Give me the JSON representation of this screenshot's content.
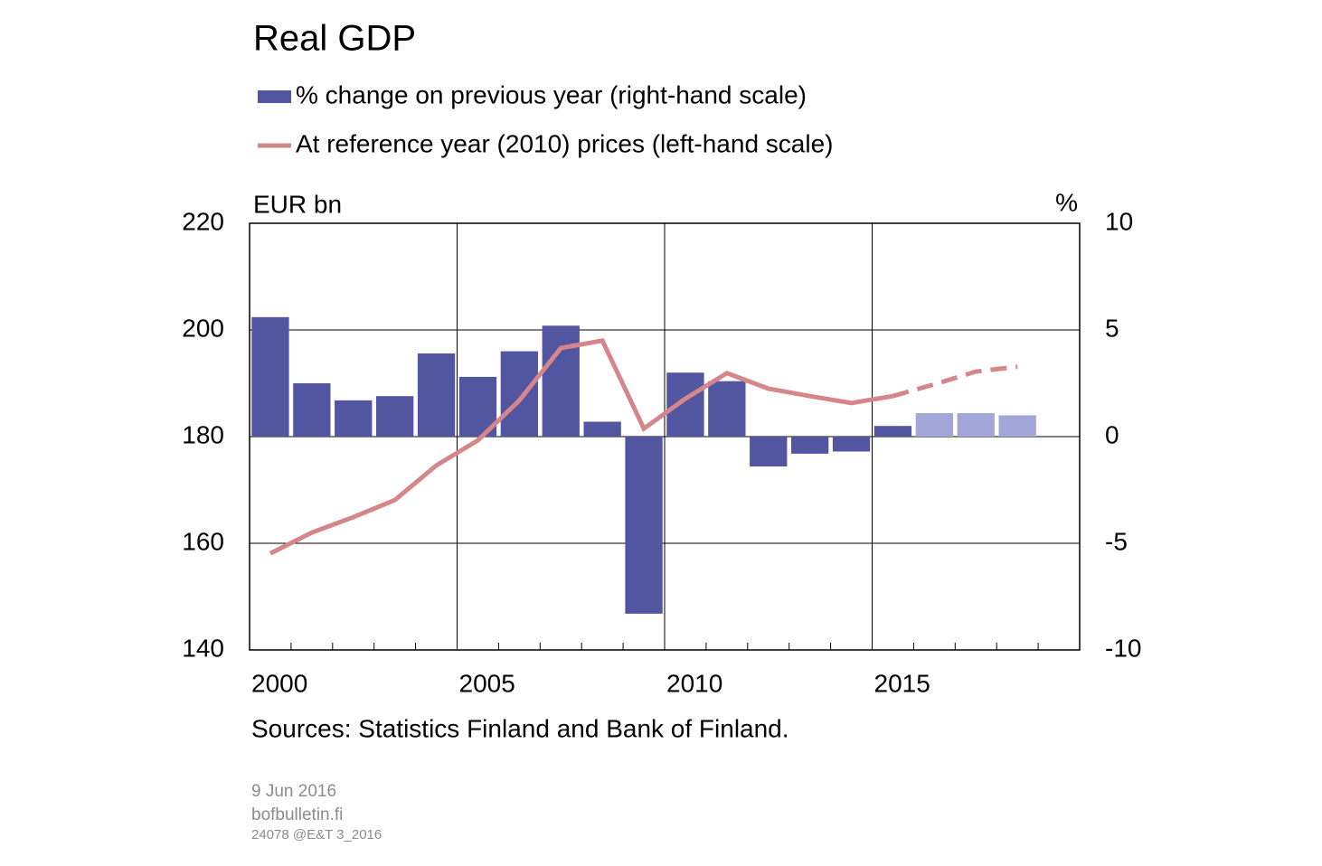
{
  "chart_data": {
    "type": "bar-line",
    "title": "Real GDP",
    "y_label": "EUR bn",
    "y2_label": "%",
    "source": "Sources: Statistics Finland and Bank of Finland.",
    "footer": [
      "9 Jun 2016",
      "bofbulletin.fi",
      "24078 @E&T 3_2016"
    ],
    "x": [
      2000,
      2001,
      2002,
      2003,
      2004,
      2005,
      2006,
      2007,
      2008,
      2009,
      2010,
      2011,
      2012,
      2013,
      2014,
      2015,
      2016,
      2017,
      2018
    ],
    "xlim": [
      1999.5,
      2019.5
    ],
    "xticks": [
      2000,
      2005,
      2010,
      2015
    ],
    "ylim": [
      140,
      220
    ],
    "yticks": [
      140,
      160,
      180,
      200,
      220
    ],
    "y2lim": [
      -10,
      10
    ],
    "y2ticks": [
      -10,
      -5,
      0,
      5,
      10
    ],
    "grid": true,
    "forecast_from": 2015,
    "series": [
      {
        "name": "% change on previous year (right-hand scale)",
        "kind": "bar",
        "axis": "y2",
        "color": "#5256a0",
        "forecast_color": "#a3a6d8",
        "values": [
          5.6,
          2.5,
          1.7,
          1.9,
          3.9,
          2.8,
          4.0,
          5.2,
          0.7,
          -8.3,
          3.0,
          2.6,
          -1.4,
          -0.8,
          -0.7,
          0.5,
          1.1,
          1.1,
          1.0
        ]
      },
      {
        "name": "At reference year (2010) prices (left-hand scale)",
        "kind": "line",
        "axis": "y",
        "color": "#d4868a",
        "values": [
          158.1,
          162.0,
          164.9,
          168.1,
          174.6,
          179.3,
          186.8,
          196.6,
          198.0,
          181.5,
          187.1,
          191.9,
          189.0,
          187.6,
          186.3,
          187.6,
          189.8,
          192.2,
          193.1
        ]
      }
    ]
  }
}
